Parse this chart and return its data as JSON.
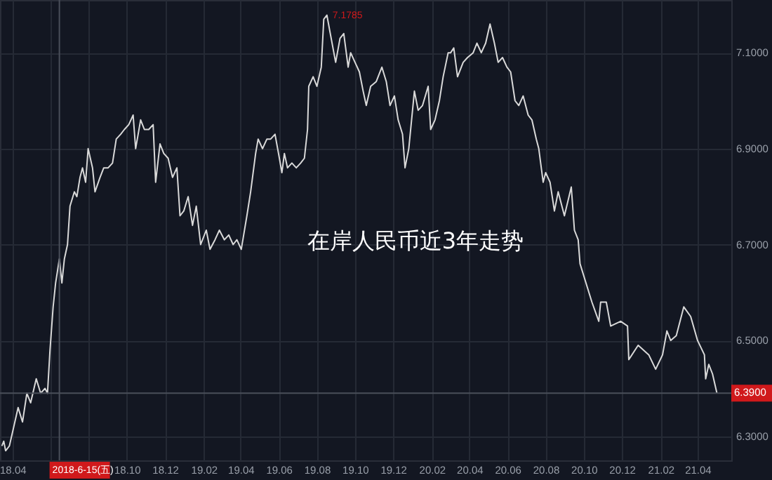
{
  "chart_data": {
    "type": "line",
    "title": "在岸人民币近3年走势",
    "x": [
      "2018-03-15",
      "2018-03-18",
      "2018-03-21",
      "2018-03-27",
      "2018-04-03",
      "2018-04-10",
      "2018-04-17",
      "2018-04-24",
      "2018-04-30",
      "2018-05-09",
      "2018-05-16",
      "2018-05-23",
      "2018-05-27",
      "2018-05-31",
      "2018-06-05",
      "2018-06-09",
      "2018-06-15",
      "2018-06-19",
      "2018-06-23",
      "2018-06-28",
      "2018-07-02",
      "2018-07-09",
      "2018-07-13",
      "2018-07-18",
      "2018-07-22",
      "2018-07-27",
      "2018-07-31",
      "2018-08-07",
      "2018-08-11",
      "2018-08-19",
      "2018-08-25",
      "2018-09-01",
      "2018-09-08",
      "2018-09-14",
      "2018-09-21",
      "2018-09-27",
      "2018-10-04",
      "2018-10-11",
      "2018-10-15",
      "2018-10-23",
      "2018-10-29",
      "2018-11-05",
      "2018-11-12",
      "2018-11-16",
      "2018-11-23",
      "2018-11-29",
      "2018-12-06",
      "2018-12-13",
      "2018-12-20",
      "2018-12-25",
      "2018-12-31",
      "2019-01-07",
      "2019-01-14",
      "2019-01-20",
      "2019-01-27",
      "2019-02-05",
      "2019-02-11",
      "2019-02-19",
      "2019-02-26",
      "2019-03-06",
      "2019-03-13",
      "2019-03-20",
      "2019-03-26",
      "2019-04-02",
      "2019-04-11",
      "2019-04-17",
      "2019-04-25",
      "2019-04-29",
      "2019-05-06",
      "2019-05-13",
      "2019-05-19",
      "2019-05-26",
      "2019-06-02",
      "2019-06-06",
      "2019-06-10",
      "2019-06-15",
      "2019-06-22",
      "2019-06-29",
      "2019-07-06",
      "2019-07-12",
      "2019-07-17",
      "2019-07-19",
      "2019-07-26",
      "2019-08-01",
      "2019-08-08",
      "2019-08-12",
      "2019-08-17",
      "2019-08-21",
      "2019-08-31",
      "2019-09-07",
      "2019-09-13",
      "2019-09-20",
      "2019-09-24",
      "2019-10-01",
      "2019-10-08",
      "2019-10-14",
      "2019-10-19",
      "2019-10-26",
      "2019-11-04",
      "2019-11-13",
      "2019-11-20",
      "2019-11-26",
      "2019-12-03",
      "2019-12-09",
      "2019-12-16",
      "2019-12-20",
      "2019-12-26",
      "2020-01-04",
      "2020-01-10",
      "2020-01-17",
      "2020-01-26",
      "2020-01-30",
      "2020-02-06",
      "2020-02-13",
      "2020-02-19",
      "2020-02-27",
      "2020-03-02",
      "2020-03-07",
      "2020-03-13",
      "2020-03-22",
      "2020-03-29",
      "2020-04-07",
      "2020-04-13",
      "2020-04-20",
      "2020-04-27",
      "2020-05-04",
      "2020-05-11",
      "2020-05-17",
      "2020-05-24",
      "2020-05-31",
      "2020-06-06",
      "2020-06-13",
      "2020-06-19",
      "2020-06-26",
      "2020-07-04",
      "2020-07-10",
      "2020-07-17",
      "2020-07-21",
      "2020-07-28",
      "2020-08-01",
      "2020-08-08",
      "2020-08-15",
      "2020-08-21",
      "2020-08-31",
      "2020-09-11",
      "2020-09-16",
      "2020-09-22",
      "2020-09-25",
      "2020-10-14",
      "2020-10-25",
      "2020-10-28",
      "2020-11-06",
      "2020-11-13",
      "2020-11-29",
      "2020-12-10",
      "2020-12-12",
      "2020-12-27",
      "2021-01-13",
      "2021-01-24",
      "2021-02-04",
      "2021-02-11",
      "2021-02-17",
      "2021-02-26",
      "2021-03-10",
      "2021-03-21",
      "2021-04-01",
      "2021-04-12",
      "2021-04-14",
      "2021-04-19",
      "2021-04-25",
      "2021-05-02"
    ],
    "series": [
      {
        "color": "#d9d9d9",
        "values": [
          6.28,
          6.29,
          6.27,
          6.28,
          6.32,
          6.36,
          6.33,
          6.39,
          6.37,
          6.42,
          6.39,
          6.4,
          6.39,
          6.48,
          6.57,
          6.62,
          6.67,
          6.62,
          6.67,
          6.7,
          6.78,
          6.81,
          6.8,
          6.84,
          6.86,
          6.83,
          6.9,
          6.86,
          6.81,
          6.84,
          6.86,
          6.86,
          6.87,
          6.92,
          6.93,
          6.94,
          6.95,
          6.97,
          6.9,
          6.96,
          6.94,
          6.94,
          6.95,
          6.83,
          6.91,
          6.89,
          6.88,
          6.84,
          6.86,
          6.76,
          6.77,
          6.8,
          6.74,
          6.78,
          6.7,
          6.73,
          6.69,
          6.71,
          6.73,
          6.71,
          6.72,
          6.7,
          6.71,
          6.69,
          6.76,
          6.81,
          6.89,
          6.92,
          6.9,
          6.92,
          6.92,
          6.93,
          6.88,
          6.85,
          6.89,
          6.86,
          6.87,
          6.86,
          6.87,
          6.88,
          6.94,
          7.03,
          7.05,
          7.03,
          7.07,
          7.17,
          7.1785,
          7.15,
          7.08,
          7.13,
          7.14,
          7.07,
          7.1,
          7.08,
          7.06,
          7.02,
          6.99,
          7.03,
          7.04,
          7.07,
          7.04,
          6.99,
          7.01,
          6.96,
          6.93,
          6.86,
          6.9,
          7.02,
          6.98,
          6.99,
          7.03,
          6.94,
          6.96,
          7.0,
          7.05,
          7.1,
          7.1,
          7.11,
          7.05,
          7.08,
          7.09,
          7.1,
          7.12,
          7.1,
          7.12,
          7.16,
          7.12,
          7.08,
          7.09,
          7.07,
          7.06,
          7.0,
          6.99,
          7.01,
          6.97,
          6.96,
          6.92,
          6.9,
          6.83,
          6.85,
          6.83,
          6.77,
          6.81,
          6.76,
          6.82,
          6.73,
          6.71,
          6.66,
          6.58,
          6.54,
          6.58,
          6.58,
          6.53,
          6.54,
          6.53,
          6.46,
          6.49,
          6.47,
          6.44,
          6.47,
          6.52,
          6.5,
          6.51,
          6.57,
          6.55,
          6.5,
          6.47,
          6.42,
          6.45,
          6.43,
          6.39
        ]
      }
    ],
    "xlim": [
      "2018-03-12",
      "2021-05-25"
    ],
    "xticks": [
      {
        "value": "2018-04-01",
        "label": "18.04"
      },
      {
        "value": "2018-06-01",
        "label": null
      },
      {
        "value": "2018-08-01",
        "label": null
      },
      {
        "value": "2018-10-01",
        "label": "18.10"
      },
      {
        "value": "2018-12-01",
        "label": "18.12"
      },
      {
        "value": "2019-02-01",
        "label": "19.02"
      },
      {
        "value": "2019-04-01",
        "label": "19.04"
      },
      {
        "value": "2019-06-01",
        "label": "19.06"
      },
      {
        "value": "2019-08-01",
        "label": "19.08"
      },
      {
        "value": "2019-10-01",
        "label": "19.10"
      },
      {
        "value": "2019-12-01",
        "label": "19.12"
      },
      {
        "value": "2020-02-01",
        "label": "20.02"
      },
      {
        "value": "2020-04-01",
        "label": "20.04"
      },
      {
        "value": "2020-06-01",
        "label": "20.06"
      },
      {
        "value": "2020-08-01",
        "label": "20.08"
      },
      {
        "value": "2020-10-01",
        "label": "20.10"
      },
      {
        "value": "2020-12-01",
        "label": "20.12"
      },
      {
        "value": "2021-02-01",
        "label": "21.02"
      },
      {
        "value": "2021-04-01",
        "label": "21.04"
      }
    ],
    "ylim": [
      6.25,
      7.21
    ],
    "yticks": [
      {
        "value": 6.3,
        "label": "6.3000"
      },
      {
        "value": 6.5,
        "label": "6.5000"
      },
      {
        "value": 6.7,
        "label": "6.7000"
      },
      {
        "value": 6.9,
        "label": "6.9000"
      },
      {
        "value": 7.1,
        "label": "7.1000"
      }
    ],
    "ref_lines": [
      {
        "axis": "x",
        "value": "2018-06-15",
        "label": "2018-6-15(五)"
      },
      {
        "axis": "y",
        "value": 6.39,
        "label": "6.3900"
      }
    ],
    "annotations": [
      {
        "text": "7.1785",
        "x": "2019-08-17",
        "y": 7.1785
      }
    ],
    "grid": true
  }
}
